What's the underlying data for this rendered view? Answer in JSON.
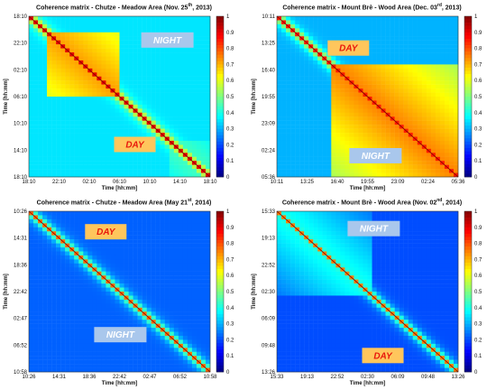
{
  "chart_data": [
    {
      "type": "heatmap",
      "title": "Coherence matrix - Chutze - Meadow Area (Nov. 25",
      "title_sup": "th",
      "title_end": ", 2013)",
      "xlabel": "Time [hh:mm]",
      "ylabel": "Time [hh:mm]",
      "ticks": [
        "18:10",
        "22:10",
        "02:10",
        "06:10",
        "10:10",
        "14:10",
        "18:10"
      ],
      "colorbar": {
        "range": [
          0,
          1
        ],
        "ticks": [
          "0",
          "0.1",
          "0.2",
          "0.3",
          "0.4",
          "0.5",
          "0.6",
          "0.7",
          "0.8",
          "0.9",
          "1"
        ]
      },
      "blocks": [
        {
          "start": 0.1,
          "end": 0.5,
          "value": 0.72
        },
        {
          "start": 0.78,
          "end": 1.0,
          "value": 0.45
        }
      ],
      "background": 0.35,
      "labels": [
        {
          "text": "NIGHT",
          "kind": "night",
          "value": "NIGHT"
        },
        {
          "text": "DAY",
          "kind": "day",
          "value": "DAY"
        }
      ]
    },
    {
      "type": "heatmap",
      "title": "Coherence matrix - Mount Brè - Wood Area (Dec. 03",
      "title_sup": "rd",
      "title_end": ", 2013)",
      "xlabel": "Time [hh:mm]",
      "ylabel": "Time [hh:mm]",
      "ticks": [
        "10:11",
        "13:25",
        "16:40",
        "19:55",
        "23:09",
        "02:24",
        "05:36"
      ],
      "colorbar": {
        "range": [
          0,
          1
        ],
        "ticks": [
          "0",
          "0.1",
          "0.2",
          "0.3",
          "0.4",
          "0.5",
          "0.6",
          "0.7",
          "0.8",
          "0.9",
          "1"
        ]
      },
      "blocks": [
        {
          "start": 0.3,
          "end": 1.0,
          "value": 0.75
        }
      ],
      "background": 0.3,
      "labels": [
        {
          "text": "DAY",
          "kind": "day"
        },
        {
          "text": "NIGHT",
          "kind": "night"
        }
      ]
    },
    {
      "type": "heatmap",
      "title": "Coherence matrix - Chutze - Meadow Area (May 21",
      "title_sup": "st",
      "title_end": ", 2014)",
      "xlabel": "Time [hh:mm]",
      "ylabel": "Time [hh:mm]",
      "ticks": [
        "10:26",
        "14:31",
        "18:36",
        "22:42",
        "02:47",
        "06:52",
        "10:58"
      ],
      "colorbar": {
        "range": [
          0,
          1
        ],
        "ticks": [
          "0",
          "0.1",
          "0.2",
          "0.3",
          "0.4",
          "0.5",
          "0.6",
          "0.7",
          "0.8",
          "0.9",
          "1"
        ]
      },
      "blocks": [],
      "background": 0.22,
      "labels": [
        {
          "text": "DAY",
          "kind": "day"
        },
        {
          "text": "NIGHT",
          "kind": "night"
        }
      ]
    },
    {
      "type": "heatmap",
      "title": "Coherence matrix - Mount Brè - Wood Area (Nov. 02",
      "title_sup": "nd",
      "title_end": ", 2014)",
      "xlabel": "Time [hh:mm]",
      "ylabel": "Time [hh:mm]",
      "ticks": [
        "15:33",
        "19:13",
        "22:52",
        "02:30",
        "06:09",
        "09:48",
        "13:26"
      ],
      "colorbar": {
        "range": [
          0,
          1
        ],
        "ticks": [
          "0",
          "0.1",
          "0.2",
          "0.3",
          "0.4",
          "0.5",
          "0.6",
          "0.7",
          "0.8",
          "0.9",
          "1"
        ]
      },
      "blocks": [
        {
          "start": 0.0,
          "end": 0.52,
          "value": 0.4
        }
      ],
      "background": 0.2,
      "labels": [
        {
          "text": "NIGHT",
          "kind": "night"
        },
        {
          "text": "DAY",
          "kind": "day"
        }
      ]
    }
  ],
  "style": {
    "night_bg": "#a9c7ec",
    "night_fg": "#ffffff",
    "day_bg": "#ffc65c",
    "day_fg": "#e8180c"
  }
}
